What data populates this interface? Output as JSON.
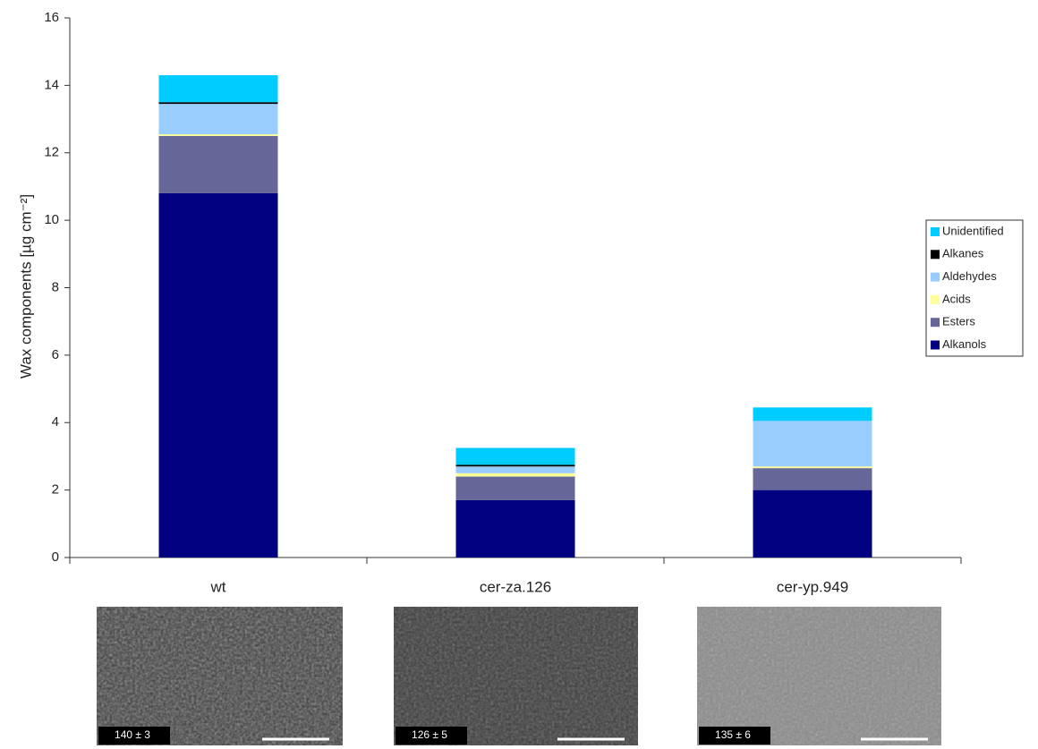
{
  "chart_data": {
    "type": "stacked-bar",
    "y_label": "Wax components [µg cm⁻²]",
    "categories": [
      "wt",
      "cer-za.126",
      "cer-yp.949"
    ],
    "series": [
      {
        "name": "Alkanols",
        "color": "#000080",
        "values": [
          10.8,
          1.7,
          2.0
        ]
      },
      {
        "name": "Esters",
        "color": "#666699",
        "values": [
          1.7,
          0.7,
          0.65
        ]
      },
      {
        "name": "Acids",
        "color": "#ffff99",
        "values": [
          0.05,
          0.1,
          0.05
        ]
      },
      {
        "name": "Aldehydes",
        "color": "#99ccff",
        "values": [
          0.9,
          0.2,
          1.35
        ]
      },
      {
        "name": "Alkanes",
        "color": "#000000",
        "values": [
          0.05,
          0.05,
          0
        ]
      },
      {
        "name": "Unidentified",
        "color": "#00ccff",
        "values": [
          0.8,
          0.5,
          0.4
        ]
      }
    ],
    "ylim": [
      0,
      16
    ],
    "yticks": [
      0,
      2,
      4,
      6,
      8,
      10,
      12,
      14,
      16
    ],
    "legend": "right"
  },
  "micrographs": [
    {
      "label": "140 ± 3"
    },
    {
      "label": "126 ± 5"
    },
    {
      "label": "135 ± 6"
    }
  ]
}
